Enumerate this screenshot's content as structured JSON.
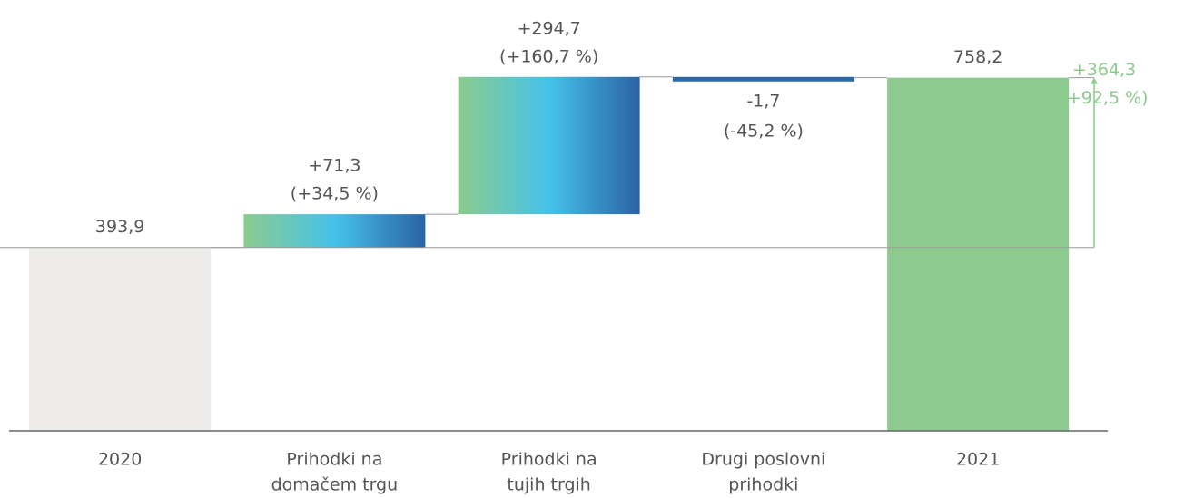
{
  "chart_data": {
    "type": "waterfall",
    "categories": [
      [
        "2020"
      ],
      [
        "Prihodki na",
        "domačem trgu"
      ],
      [
        "Prihodki na",
        "tujih trgih"
      ],
      [
        "Drugi poslovni",
        "prihodki"
      ],
      [
        "2021"
      ]
    ],
    "values": [
      393.9,
      71.3,
      294.7,
      -1.7,
      758.2
    ],
    "value_labels": [
      "393,9",
      "+71,3",
      "+294,7",
      "-1,7",
      "758,2"
    ],
    "percent_values": [
      null,
      34.5,
      160.7,
      -45.2,
      null
    ],
    "percent_labels": [
      null,
      "(+34,5 %)",
      "(+160,7 %)",
      "(-45,2 %)",
      null
    ],
    "total_change": {
      "value": 364.3,
      "label": "+364,3",
      "percent": 92.5,
      "percent_label": "(+92,5 %)",
      "color": "#8cca8e"
    },
    "start_color": "#edecea",
    "end_color": "#8cca8e",
    "increase_gradient": [
      "#8ccb8d",
      "#45c2ea",
      "#2b62a6"
    ],
    "decrease_color": "#2f68a5",
    "ylim": [
      0,
      925
    ]
  }
}
